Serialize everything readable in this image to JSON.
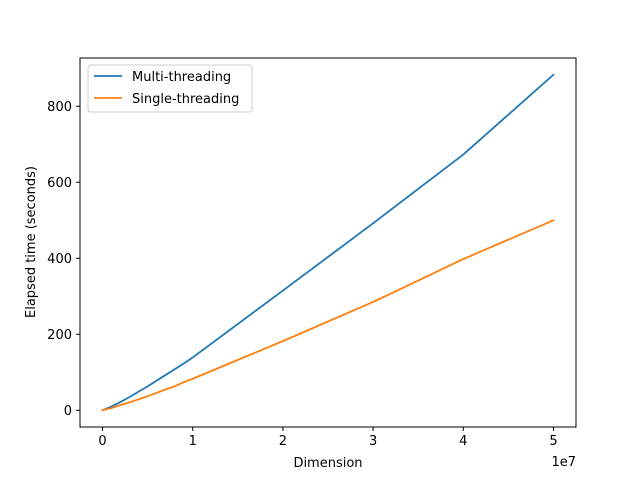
{
  "chart_data": {
    "type": "line",
    "xlabel": "Dimension",
    "ylabel": "Elapsed time (seconds)",
    "x_multiplier_label": "1e7",
    "xlim": [
      -2500000,
      52500000
    ],
    "ylim": [
      -44,
      927
    ],
    "x_ticks": [
      0,
      10000000,
      20000000,
      30000000,
      40000000,
      50000000
    ],
    "x_tick_labels": [
      "0",
      "1",
      "2",
      "3",
      "4",
      "5"
    ],
    "y_ticks": [
      0,
      200,
      400,
      600,
      800
    ],
    "y_tick_labels": [
      "0",
      "200",
      "400",
      "600",
      "800"
    ],
    "grid": false,
    "legend_position": "upper-left",
    "series": [
      {
        "name": "Multi-threading",
        "color": "#1f77b4",
        "x": [
          0,
          1000000,
          2000000,
          3000000,
          4000000,
          5000000,
          6000000,
          7000000,
          8000000,
          9000000,
          10000000,
          20000000,
          30000000,
          40000000,
          50000000
        ],
        "y": [
          0,
          10,
          22,
          35,
          49,
          63,
          78,
          93,
          108,
          123,
          139,
          315,
          492,
          673,
          883
        ]
      },
      {
        "name": "Single-threading",
        "color": "#ff7f0e",
        "x": [
          0,
          1000000,
          2000000,
          3000000,
          4000000,
          5000000,
          6000000,
          7000000,
          8000000,
          9000000,
          10000000,
          20000000,
          30000000,
          40000000,
          50000000
        ],
        "y": [
          0,
          6,
          14,
          21,
          29,
          37,
          46,
          55,
          63,
          74,
          83,
          182,
          285,
          398,
          500
        ]
      }
    ]
  }
}
